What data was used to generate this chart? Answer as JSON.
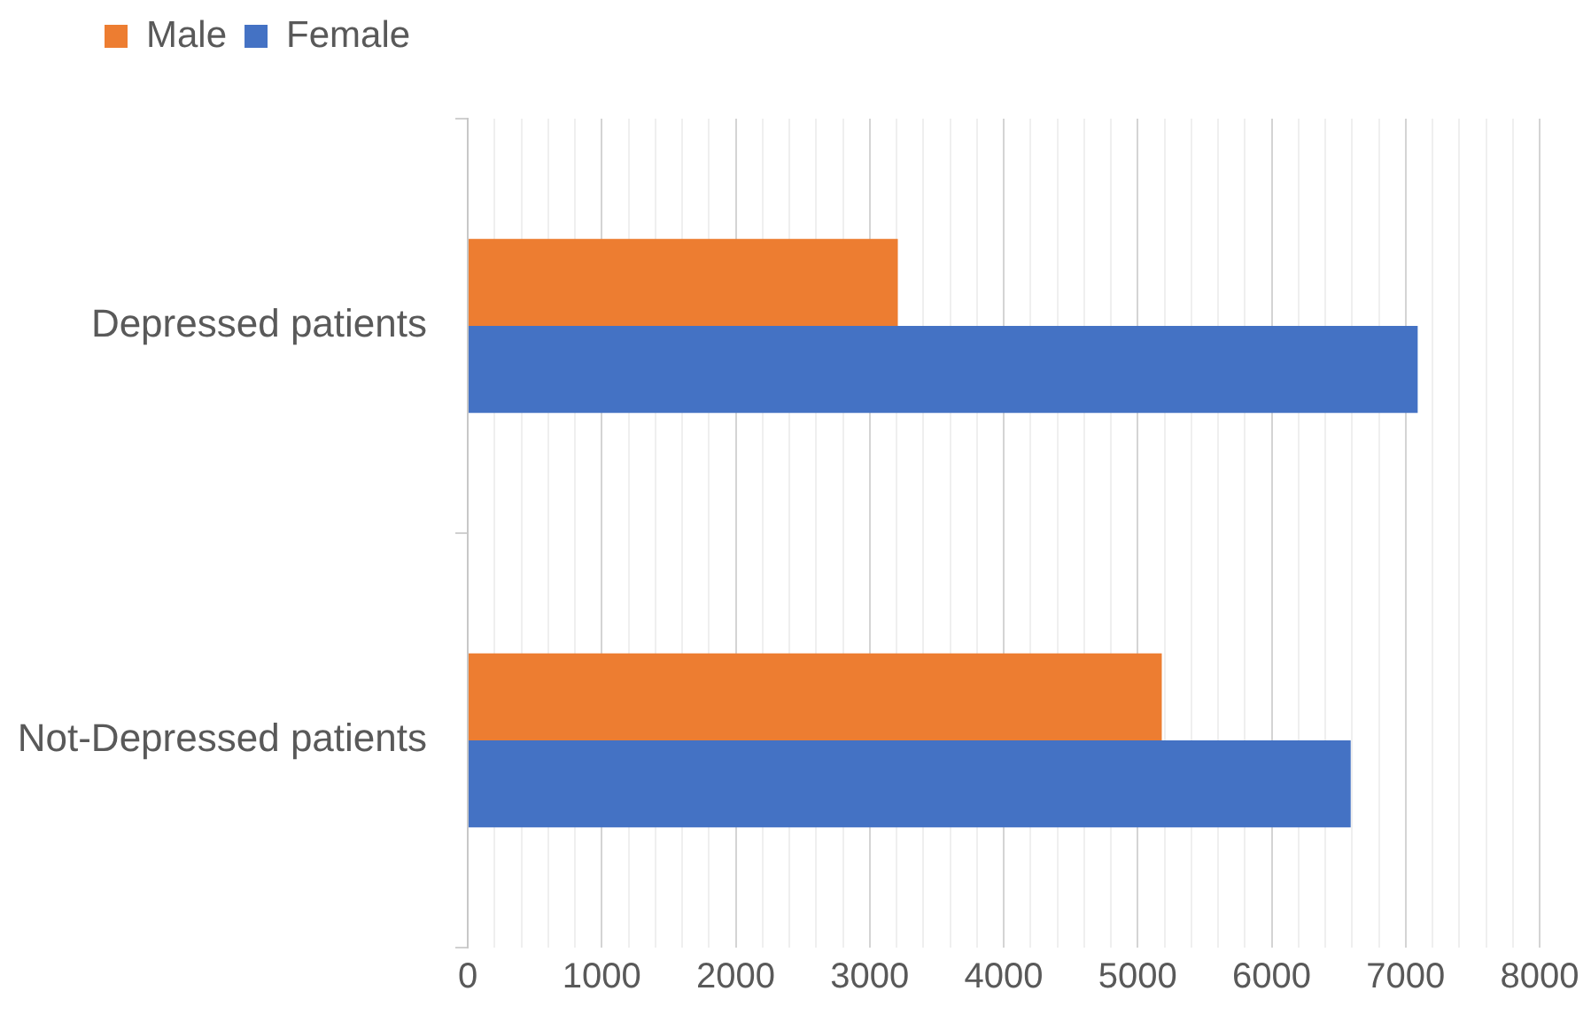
{
  "chart_data": {
    "type": "bar",
    "orientation": "horizontal",
    "categories": [
      "Depressed patients",
      "Not-Depressed patients"
    ],
    "series": [
      {
        "name": "Male",
        "color": "#ed7d31",
        "values": [
          3210,
          5180
        ]
      },
      {
        "name": "Female",
        "color": "#4472c4",
        "values": [
          7090,
          6590
        ]
      }
    ],
    "xlim": [
      0,
      8000
    ],
    "xticks": [
      0,
      {
        "value": 200,
        "label": null
      },
      {
        "value": 400,
        "label": null
      },
      {
        "value": 600,
        "label": null
      },
      {
        "value": 800,
        "label": null
      },
      1000,
      {
        "value": 1200,
        "label": null
      },
      {
        "value": 1400,
        "label": null
      },
      {
        "value": 1600,
        "label": null
      },
      {
        "value": 1800,
        "label": null
      },
      2000,
      {
        "value": 2200,
        "label": null
      },
      {
        "value": 2400,
        "label": null
      },
      {
        "value": 2600,
        "label": null
      },
      {
        "value": 2800,
        "label": null
      },
      3000,
      {
        "value": 3200,
        "label": null
      },
      {
        "value": 3400,
        "label": null
      },
      {
        "value": 3600,
        "label": null
      },
      {
        "value": 3800,
        "label": null
      },
      4000,
      {
        "value": 4200,
        "label": null
      },
      {
        "value": 4400,
        "label": null
      },
      {
        "value": 4600,
        "label": null
      },
      {
        "value": 4800,
        "label": null
      },
      5000,
      {
        "value": 5200,
        "label": null
      },
      {
        "value": 5400,
        "label": null
      },
      {
        "value": 5600,
        "label": null
      },
      {
        "value": 5800,
        "label": null
      },
      6000,
      {
        "value": 6200,
        "label": null
      },
      {
        "value": 6400,
        "label": null
      },
      {
        "value": 6600,
        "label": null
      },
      {
        "value": 6800,
        "label": null
      },
      7000,
      {
        "value": 7200,
        "label": null
      },
      {
        "value": 7400,
        "label": null
      },
      {
        "value": 7600,
        "label": null
      },
      {
        "value": 7800,
        "label": null
      },
      8000
    ],
    "grid": "x",
    "legend": "top left"
  }
}
